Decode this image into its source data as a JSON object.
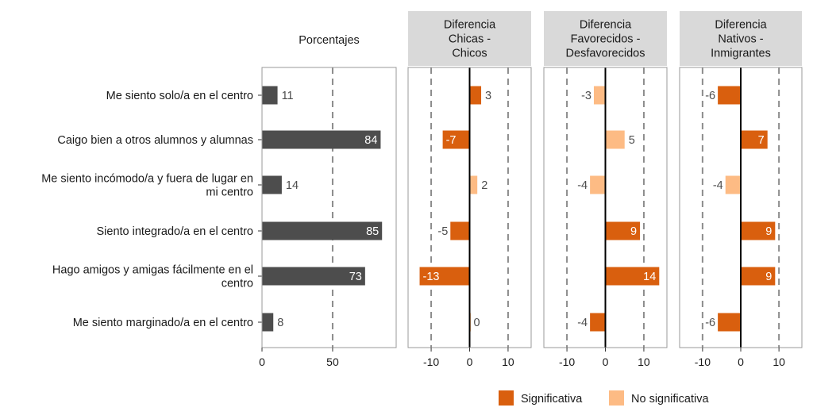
{
  "chart_data": {
    "type": "bar",
    "orientation": "horizontal",
    "categories": [
      [
        "Me siento solo/a en el centro"
      ],
      [
        "Caigo bien a otros alumnos y alumnas"
      ],
      [
        "Me siento incómodo/a y fuera de lugar en",
        "mi centro"
      ],
      [
        "Siento integrado/a en el centro"
      ],
      [
        "Hago amigos y amigas fácilmente en el",
        "centro"
      ],
      [
        "Me siento marginado/a en el centro"
      ]
    ],
    "panels": [
      {
        "title": [
          "Porcentajes"
        ],
        "strip": false,
        "values": [
          11,
          84,
          14,
          85,
          73,
          8
        ],
        "xlim": [
          0,
          95
        ],
        "ticks": [
          0,
          50
        ],
        "gridlines": [
          50
        ]
      },
      {
        "title": [
          "Diferencia",
          "Chicas -",
          "Chicos"
        ],
        "strip": true,
        "values": [
          3,
          -7,
          2,
          -5,
          -13,
          0
        ],
        "significant": [
          true,
          true,
          false,
          true,
          true,
          false
        ],
        "xlim": [
          -16,
          16
        ],
        "ticks": [
          -10,
          0,
          10
        ],
        "gridlines": [
          -10,
          10
        ]
      },
      {
        "title": [
          "Diferencia",
          "Favorecidos -",
          "Desfavorecidos"
        ],
        "strip": true,
        "values": [
          -3,
          5,
          -4,
          9,
          14,
          -4
        ],
        "significant": [
          false,
          false,
          false,
          true,
          true,
          true
        ],
        "xlim": [
          -16,
          16
        ],
        "ticks": [
          -10,
          0,
          10
        ],
        "gridlines": [
          -10,
          10
        ]
      },
      {
        "title": [
          "Diferencia",
          "Nativos -",
          "Inmigrantes"
        ],
        "strip": true,
        "values": [
          -6,
          7,
          -4,
          9,
          9,
          -6
        ],
        "significant": [
          true,
          true,
          false,
          true,
          true,
          true
        ],
        "xlim": [
          -16,
          16
        ],
        "ticks": [
          -10,
          0,
          10
        ],
        "gridlines": [
          -10,
          10
        ]
      }
    ],
    "legend": {
      "position": "bottom",
      "entries": [
        {
          "label": "Significativa",
          "color": "#d95f0e"
        },
        {
          "label": "No significativa",
          "color": "#fdbb84"
        }
      ]
    },
    "colors": {
      "percent_bar": "#4d4d4d",
      "significant": "#d95f0e",
      "not_significant": "#fdbb84",
      "strip_bg": "#d9d9d9",
      "panel_border": "#999999",
      "gridline": "#8c8c8c"
    },
    "grid": "dashed vertical reference lines"
  }
}
